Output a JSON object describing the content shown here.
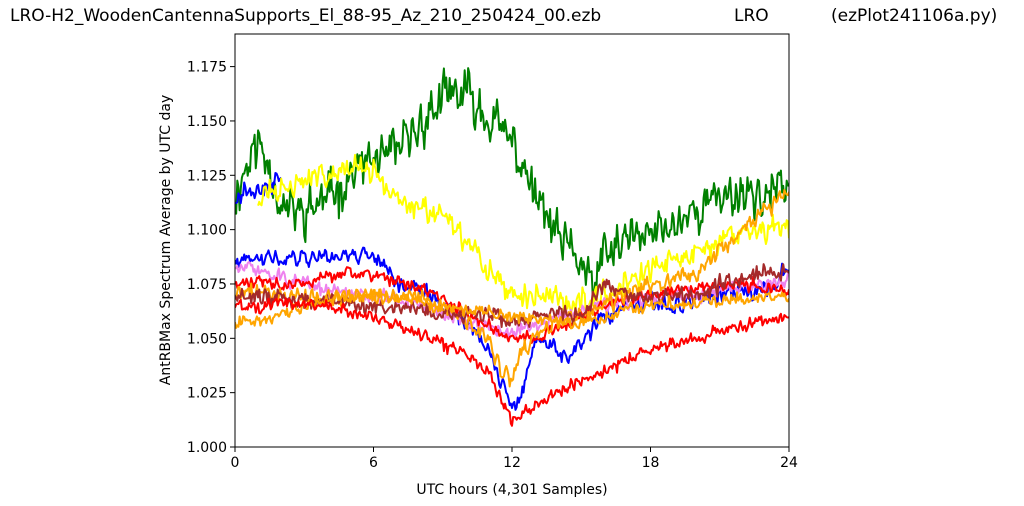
{
  "title": {
    "file": "LRO-H2_WoodenCantennaSupports_El_88-95_Az_210_250424_00.ezb",
    "site": "LRO",
    "program": "(ezPlot241106a.py)"
  },
  "chart_data": {
    "type": "line",
    "xlabel": "UTC hours  (4,301 Samples)",
    "ylabel": "AntRBMax Spectrum Average by UTC day",
    "xlim": [
      0,
      24
    ],
    "ylim": [
      1.0,
      1.19
    ],
    "xticks": [
      0,
      6,
      12,
      18,
      24
    ],
    "xtick_labels": [
      "0",
      "6",
      "12",
      "18",
      "24"
    ],
    "yticks": [
      1.0,
      1.025,
      1.05,
      1.075,
      1.1,
      1.125,
      1.15,
      1.175
    ],
    "ytick_labels": [
      "1.000",
      "1.025",
      "1.050",
      "1.075",
      "1.100",
      "1.125",
      "1.150",
      "1.175"
    ],
    "grid": false,
    "legend": "none",
    "series": [
      {
        "color": "#008000",
        "noise": 0.011,
        "seed": 11,
        "points": [
          [
            0,
            1.115
          ],
          [
            0.5,
            1.13
          ],
          [
            1,
            1.14
          ],
          [
            1.5,
            1.13
          ],
          [
            2,
            1.11
          ],
          [
            3,
            1.108
          ],
          [
            4,
            1.115
          ],
          [
            5,
            1.125
          ],
          [
            6,
            1.132
          ],
          [
            7,
            1.135
          ],
          [
            8,
            1.148
          ],
          [
            9,
            1.16
          ],
          [
            10,
            1.163
          ],
          [
            11,
            1.152
          ],
          [
            12,
            1.14
          ],
          [
            13,
            1.115
          ],
          [
            14,
            1.095
          ],
          [
            15,
            1.085
          ],
          [
            15.5,
            1.072
          ],
          [
            16,
            1.088
          ],
          [
            17,
            1.095
          ],
          [
            18,
            1.098
          ],
          [
            19,
            1.102
          ],
          [
            20,
            1.11
          ],
          [
            21,
            1.115
          ],
          [
            22,
            1.118
          ],
          [
            23,
            1.115
          ],
          [
            24,
            1.12
          ]
        ]
      },
      {
        "color": "#0000ff",
        "noise": 0.005,
        "seed": 21,
        "range": [
          0,
          2
        ],
        "points": [
          [
            0,
            1.115
          ],
          [
            0.5,
            1.118
          ],
          [
            1,
            1.117
          ],
          [
            1.5,
            1.12
          ],
          [
            2,
            1.126
          ]
        ]
      },
      {
        "color": "#ffff00",
        "noise": 0.006,
        "seed": 31,
        "points": [
          [
            1,
            1.115
          ],
          [
            2,
            1.118
          ],
          [
            3,
            1.122
          ],
          [
            4,
            1.126
          ],
          [
            5,
            1.13
          ],
          [
            6,
            1.125
          ],
          [
            7,
            1.115
          ],
          [
            8,
            1.11
          ],
          [
            9,
            1.105
          ],
          [
            10,
            1.095
          ],
          [
            11,
            1.08
          ],
          [
            12,
            1.07
          ],
          [
            13,
            1.07
          ],
          [
            14,
            1.068
          ],
          [
            15,
            1.067
          ],
          [
            16,
            1.07
          ],
          [
            17,
            1.076
          ],
          [
            18,
            1.082
          ],
          [
            19,
            1.085
          ],
          [
            20,
            1.09
          ],
          [
            21,
            1.095
          ],
          [
            22,
            1.098
          ],
          [
            23,
            1.1
          ],
          [
            24,
            1.102
          ]
        ]
      },
      {
        "color": "#0000ff",
        "noise": 0.004,
        "seed": 41,
        "points": [
          [
            0,
            1.085
          ],
          [
            2,
            1.087
          ],
          [
            4,
            1.088
          ],
          [
            6,
            1.089
          ],
          [
            6.5,
            1.083
          ],
          [
            7,
            1.076
          ],
          [
            8,
            1.072
          ],
          [
            9,
            1.066
          ],
          [
            10,
            1.058
          ],
          [
            11,
            1.045
          ],
          [
            11.5,
            1.03
          ],
          [
            12,
            1.018
          ],
          [
            12.5,
            1.025
          ],
          [
            13,
            1.05
          ],
          [
            14,
            1.045
          ],
          [
            14.5,
            1.04
          ],
          [
            15,
            1.048
          ],
          [
            16,
            1.06
          ],
          [
            17,
            1.064
          ],
          [
            18,
            1.066
          ],
          [
            19,
            1.065
          ],
          [
            20,
            1.068
          ],
          [
            21,
            1.07
          ],
          [
            22,
            1.071
          ],
          [
            23,
            1.073
          ],
          [
            24,
            1.083
          ]
        ]
      },
      {
        "color": "#ee82ee",
        "noise": 0.0035,
        "seed": 51,
        "points": [
          [
            0,
            1.082
          ],
          [
            1,
            1.082
          ],
          [
            2,
            1.078
          ],
          [
            4,
            1.072
          ],
          [
            6,
            1.07
          ],
          [
            8,
            1.065
          ],
          [
            10,
            1.058
          ],
          [
            11,
            1.055
          ],
          [
            12,
            1.052
          ],
          [
            13,
            1.056
          ],
          [
            14,
            1.06
          ],
          [
            16,
            1.065
          ],
          [
            18,
            1.068
          ],
          [
            20,
            1.07
          ],
          [
            22,
            1.073
          ],
          [
            24,
            1.078
          ]
        ]
      },
      {
        "color": "#ff0000",
        "noise": 0.003,
        "seed": 61,
        "points": [
          [
            0,
            1.075
          ],
          [
            1,
            1.076
          ],
          [
            2,
            1.074
          ],
          [
            3,
            1.075
          ],
          [
            4,
            1.078
          ],
          [
            5,
            1.08
          ],
          [
            6,
            1.079
          ],
          [
            7,
            1.077
          ],
          [
            8,
            1.072
          ],
          [
            9,
            1.068
          ],
          [
            10,
            1.062
          ],
          [
            11,
            1.055
          ],
          [
            12,
            1.05
          ],
          [
            13,
            1.05
          ],
          [
            14,
            1.055
          ],
          [
            15,
            1.06
          ],
          [
            16,
            1.065
          ],
          [
            17,
            1.068
          ],
          [
            18,
            1.07
          ],
          [
            19,
            1.072
          ],
          [
            20,
            1.073
          ],
          [
            22,
            1.075
          ],
          [
            24,
            1.072
          ]
        ]
      },
      {
        "color": "#ffa500",
        "noise": 0.004,
        "seed": 71,
        "points": [
          [
            0,
            1.07
          ],
          [
            1,
            1.072
          ],
          [
            2,
            1.07
          ],
          [
            4,
            1.068
          ],
          [
            6,
            1.07
          ],
          [
            8,
            1.068
          ],
          [
            9,
            1.063
          ],
          [
            10,
            1.058
          ],
          [
            11,
            1.05
          ],
          [
            11.5,
            1.035
          ],
          [
            12,
            1.03
          ],
          [
            12.5,
            1.045
          ],
          [
            13,
            1.05
          ],
          [
            14,
            1.058
          ],
          [
            15,
            1.06
          ],
          [
            16,
            1.065
          ],
          [
            18,
            1.075
          ],
          [
            20,
            1.08
          ],
          [
            21,
            1.09
          ],
          [
            22,
            1.1
          ],
          [
            23,
            1.11
          ],
          [
            24,
            1.115
          ]
        ]
      },
      {
        "color": "#a52a2a",
        "noise": 0.004,
        "seed": 81,
        "points": [
          [
            0,
            1.07
          ],
          [
            2,
            1.068
          ],
          [
            4,
            1.067
          ],
          [
            6,
            1.065
          ],
          [
            8,
            1.063
          ],
          [
            10,
            1.06
          ],
          [
            11,
            1.062
          ],
          [
            12,
            1.058
          ],
          [
            13,
            1.06
          ],
          [
            14,
            1.062
          ],
          [
            15,
            1.06
          ],
          [
            15.5,
            1.068
          ],
          [
            16,
            1.075
          ],
          [
            17,
            1.07
          ],
          [
            18,
            1.068
          ],
          [
            19,
            1.068
          ],
          [
            20,
            1.07
          ],
          [
            21,
            1.075
          ],
          [
            22,
            1.078
          ],
          [
            23,
            1.08
          ],
          [
            24,
            1.08
          ]
        ]
      },
      {
        "color": "#ffa500",
        "noise": 0.003,
        "seed": 91,
        "points": [
          [
            0,
            1.058
          ],
          [
            1,
            1.058
          ],
          [
            2,
            1.062
          ],
          [
            3,
            1.065
          ],
          [
            4,
            1.068
          ],
          [
            6,
            1.07
          ],
          [
            8,
            1.068
          ],
          [
            9,
            1.065
          ],
          [
            10,
            1.062
          ],
          [
            11,
            1.062
          ],
          [
            12,
            1.06
          ],
          [
            13,
            1.06
          ],
          [
            14,
            1.058
          ],
          [
            15,
            1.057
          ],
          [
            16,
            1.06
          ],
          [
            17,
            1.063
          ],
          [
            18,
            1.065
          ],
          [
            20,
            1.066
          ],
          [
            22,
            1.068
          ],
          [
            24,
            1.07
          ]
        ]
      },
      {
        "color": "#ff0000",
        "noise": 0.003,
        "seed": 101,
        "points": [
          [
            0,
            1.065
          ],
          [
            1,
            1.065
          ],
          [
            2,
            1.066
          ],
          [
            3,
            1.066
          ],
          [
            4,
            1.065
          ],
          [
            5,
            1.062
          ],
          [
            6,
            1.06
          ],
          [
            7,
            1.056
          ],
          [
            8,
            1.052
          ],
          [
            9,
            1.048
          ],
          [
            10,
            1.043
          ],
          [
            11,
            1.035
          ],
          [
            11.5,
            1.022
          ],
          [
            12,
            1.012
          ],
          [
            12.5,
            1.016
          ],
          [
            13,
            1.02
          ],
          [
            14,
            1.025
          ],
          [
            15,
            1.03
          ],
          [
            16,
            1.035
          ],
          [
            17,
            1.04
          ],
          [
            18,
            1.045
          ],
          [
            19,
            1.048
          ],
          [
            20,
            1.05
          ],
          [
            21,
            1.053
          ],
          [
            22,
            1.056
          ],
          [
            23,
            1.058
          ],
          [
            24,
            1.06
          ]
        ]
      }
    ]
  }
}
